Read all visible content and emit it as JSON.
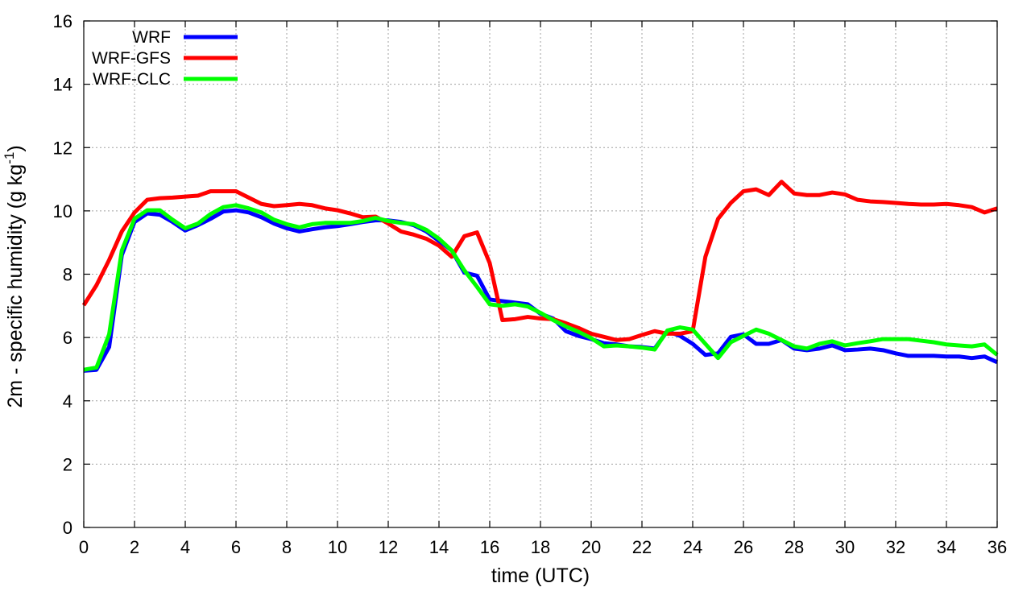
{
  "chart_data": {
    "type": "line",
    "xlabel": "time (UTC)",
    "ylabel": {
      "main": "2m - specific humidity (g kg",
      "sup": "-1",
      "close": ")"
    },
    "xlim": [
      0,
      36
    ],
    "ylim": [
      0,
      16
    ],
    "xticks": [
      0,
      2,
      4,
      6,
      8,
      10,
      12,
      14,
      16,
      18,
      20,
      22,
      24,
      26,
      28,
      30,
      32,
      34,
      36
    ],
    "yticks": [
      0,
      2,
      4,
      6,
      8,
      10,
      12,
      14,
      16
    ],
    "grid": true,
    "legend_position": "top-left",
    "x": [
      0,
      0.5,
      1,
      1.5,
      2,
      2.5,
      3,
      3.5,
      4,
      4.5,
      5,
      5.5,
      6,
      6.5,
      7,
      7.5,
      8,
      8.5,
      9,
      9.5,
      10,
      10.5,
      11,
      11.5,
      12,
      12.5,
      13,
      13.5,
      14,
      14.5,
      15,
      15.5,
      16,
      16.5,
      17,
      17.5,
      18,
      18.5,
      19,
      19.5,
      20,
      20.5,
      21,
      21.5,
      22,
      22.5,
      23,
      23.5,
      24,
      24.5,
      25,
      25.5,
      26,
      26.5,
      27,
      27.5,
      28,
      28.5,
      29,
      29.5,
      30,
      30.5,
      31,
      31.5,
      32,
      32.5,
      33,
      33.5,
      34,
      34.5,
      35,
      35.5,
      36
    ],
    "series": [
      {
        "name": "WRF",
        "color": "#0000ff",
        "values": [
          4.95,
          4.98,
          5.7,
          8.6,
          9.65,
          9.92,
          9.88,
          9.65,
          9.38,
          9.55,
          9.75,
          9.98,
          10.02,
          9.95,
          9.8,
          9.6,
          9.45,
          9.35,
          9.42,
          9.48,
          9.52,
          9.58,
          9.65,
          9.7,
          9.7,
          9.65,
          9.55,
          9.35,
          9.05,
          8.75,
          8.05,
          7.95,
          7.2,
          7.15,
          7.1,
          7.05,
          6.75,
          6.6,
          6.2,
          6.05,
          5.95,
          5.82,
          5.78,
          5.72,
          5.7,
          5.65,
          6.2,
          6.05,
          5.8,
          5.45,
          5.5,
          6.02,
          6.1,
          5.8,
          5.8,
          5.92,
          5.65,
          5.6,
          5.65,
          5.75,
          5.6,
          5.62,
          5.65,
          5.6,
          5.5,
          5.42,
          5.42,
          5.42,
          5.4,
          5.4,
          5.35,
          5.4,
          5.22
        ]
      },
      {
        "name": "WRF-GFS",
        "color": "#ff0000",
        "values": [
          7.02,
          7.65,
          8.45,
          9.35,
          9.95,
          10.35,
          10.4,
          10.42,
          10.45,
          10.48,
          10.62,
          10.62,
          10.62,
          10.42,
          10.22,
          10.15,
          10.18,
          10.22,
          10.18,
          10.08,
          10.02,
          9.92,
          9.8,
          9.82,
          9.6,
          9.35,
          9.25,
          9.12,
          8.9,
          8.55,
          9.2,
          9.32,
          8.35,
          6.55,
          6.58,
          6.65,
          6.6,
          6.58,
          6.45,
          6.3,
          6.12,
          6.02,
          5.92,
          5.95,
          6.08,
          6.2,
          6.12,
          6.12,
          6.2,
          8.55,
          9.75,
          10.25,
          10.62,
          10.68,
          10.5,
          10.92,
          10.55,
          10.5,
          10.5,
          10.58,
          10.52,
          10.35,
          10.3,
          10.28,
          10.25,
          10.22,
          10.2,
          10.2,
          10.22,
          10.18,
          10.12,
          9.95,
          10.08
        ]
      },
      {
        "name": "WRF-CLC",
        "color": "#00ff00",
        "values": [
          4.98,
          5.05,
          6.1,
          8.75,
          9.75,
          10.02,
          10.02,
          9.72,
          9.45,
          9.6,
          9.9,
          10.12,
          10.18,
          10.08,
          9.95,
          9.72,
          9.58,
          9.48,
          9.58,
          9.62,
          9.62,
          9.62,
          9.68,
          9.78,
          9.68,
          9.62,
          9.58,
          9.4,
          9.12,
          8.75,
          8.12,
          7.6,
          7.05,
          7.0,
          7.05,
          6.98,
          6.78,
          6.55,
          6.35,
          6.18,
          5.98,
          5.72,
          5.75,
          5.72,
          5.68,
          5.62,
          6.22,
          6.32,
          6.25,
          5.8,
          5.35,
          5.85,
          6.05,
          6.25,
          6.12,
          5.92,
          5.72,
          5.65,
          5.8,
          5.88,
          5.75,
          5.82,
          5.88,
          5.95,
          5.95,
          5.95,
          5.9,
          5.85,
          5.78,
          5.75,
          5.72,
          5.78,
          5.45
        ]
      }
    ]
  }
}
